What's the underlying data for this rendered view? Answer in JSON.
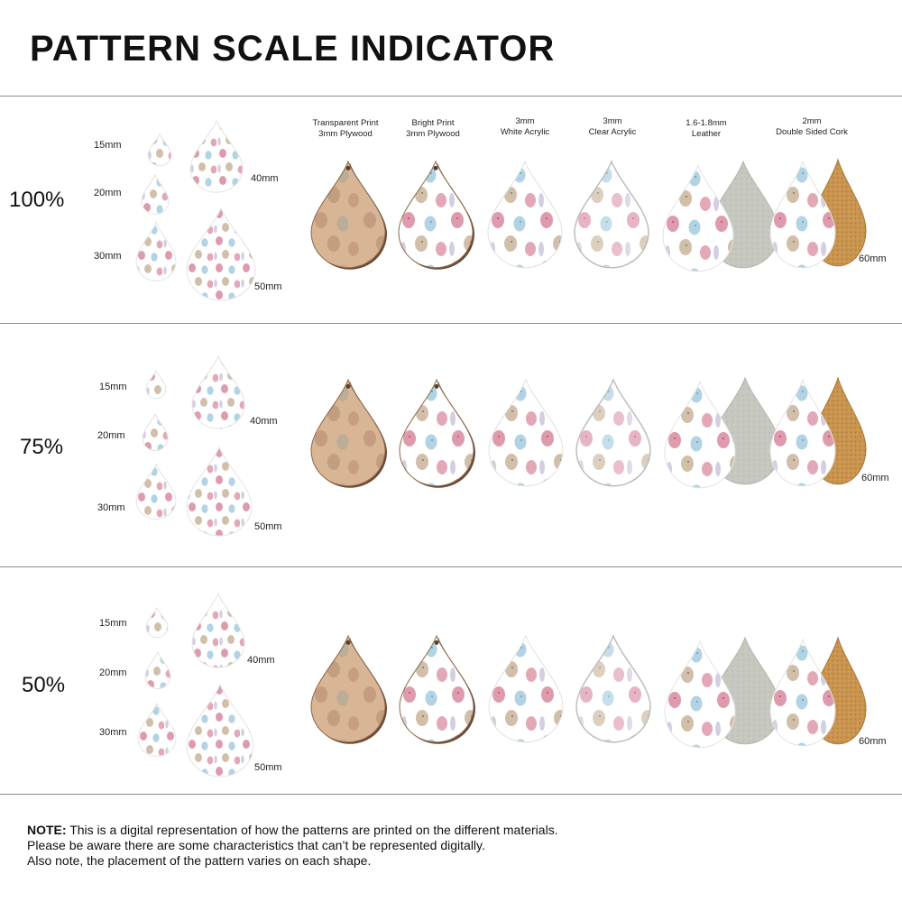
{
  "title": "PATTERN SCALE INDICATOR",
  "columns": [
    {
      "line1": "Transparent Print",
      "line2": "3mm Plywood",
      "material": "plywood-transparent"
    },
    {
      "line1": "Bright Print",
      "line2": "3mm Plywood",
      "material": "plywood-bright"
    },
    {
      "line1": "3mm",
      "line2": "White Acrylic",
      "material": "white-acrylic"
    },
    {
      "line1": "3mm",
      "line2": "Clear Acrylic",
      "material": "clear-acrylic"
    },
    {
      "line1": "1.6-1.8mm",
      "line2": "Leather",
      "material": "leather"
    },
    {
      "line1": "2mm",
      "line2": "Double Sided Cork",
      "material": "cork"
    }
  ],
  "sections": [
    {
      "scale": "100%",
      "sizes": [
        "15mm",
        "20mm",
        "30mm",
        "40mm",
        "50mm"
      ],
      "product_size": "60mm"
    },
    {
      "scale": "75%",
      "sizes": [
        "15mm",
        "20mm",
        "30mm",
        "40mm",
        "50mm"
      ],
      "product_size": "60mm"
    },
    {
      "scale": "50%",
      "sizes": [
        "15mm",
        "20mm",
        "30mm",
        "40mm",
        "50mm"
      ],
      "product_size": "60mm"
    }
  ],
  "note": {
    "label": "NOTE:",
    "line1": "This is a digital representation of how the patterns are printed on the different materials.",
    "line2": "Please be aware there are some characteristics that can’t be represented digitally.",
    "line3": "Also note, the placement of the pattern varies on each shape."
  },
  "colors": {
    "egg_pink": "#d98aa0",
    "egg_blue": "#a9cfe0",
    "egg_beige": "#c9b49a",
    "bunny_lavender": "#c9c2dc",
    "plywood": "#d8b594",
    "plywood_edge": "#6b4a36",
    "leather_back": "#c6c8c0",
    "cork": "#c9944f",
    "divider": "#8c8c8c"
  }
}
